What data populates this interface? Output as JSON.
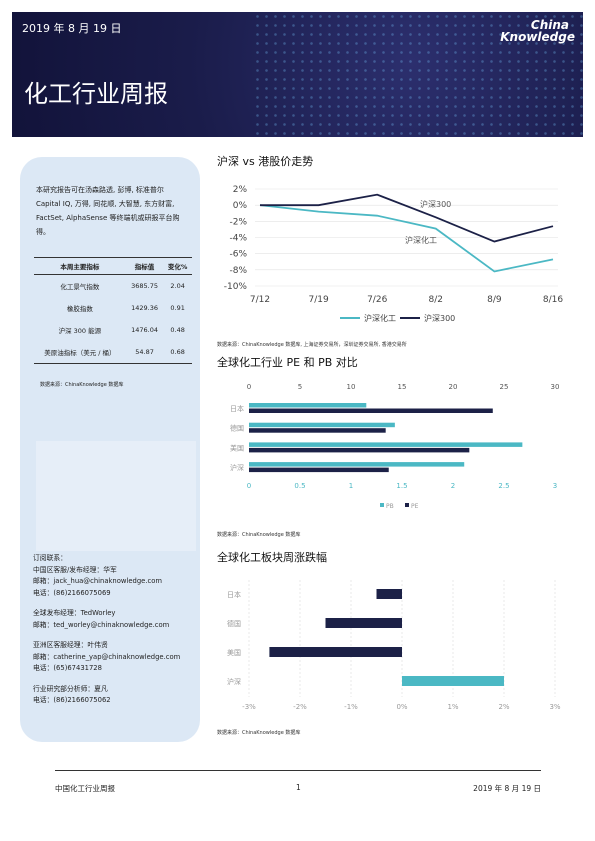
{
  "header": {
    "date": "2019 年 8 月 19 日",
    "logo": [
      "China",
      "Knowledge"
    ],
    "title": "化工行业周报"
  },
  "sidebar": {
    "intro": "本研究报告可在汤森路透, 彭博, 标准普尔 Capital IQ, 万得, 同花顺, 大智慧, 东方财富, FactSet, AlphaSense 等终端机或研报平台购得。",
    "table": {
      "header": [
        "本周主要指标",
        "指标值",
        "变化%"
      ],
      "rows": [
        [
          "化工景气指数",
          "3685.75",
          "2.04"
        ],
        [
          "橡胶指数",
          "1429.36",
          "0.91"
        ],
        [
          "沪深 300 能源",
          "1476.04",
          "0.48"
        ],
        [
          "美原油指标（美元 / 桶）",
          "54.87",
          "0.68"
        ]
      ]
    },
    "source": "数据来源：ChinaKnowledge 数据库",
    "contacts": [
      [
        "订阅联系：",
        "中国区客服/发布经理：华军",
        "邮箱：jack_hua@chinaknowledge.com",
        "电话：(86)2166075069"
      ],
      [
        "全球发布经理：TedWorley",
        "邮箱：ted_worley@chinaknowledge.com"
      ],
      [
        "亚洲区客服经理：叶伟贤",
        "邮箱：catherine_yap@chinaknowledge.com",
        "电话：(65)67431728"
      ],
      [
        "行业研究部分析师：夏凡",
        "电话：(86)2166075062"
      ]
    ]
  },
  "chart_data": [
    {
      "type": "line",
      "title": "沪深 vs 港股价走势",
      "categories": [
        "7/12",
        "7/19",
        "7/26",
        "8/2",
        "8/9",
        "8/16"
      ],
      "series": [
        {
          "name": "沪深化工",
          "color": "#4bb8c4",
          "values": [
            0,
            -0.8,
            -1.3,
            -2.9,
            -8.2,
            -6.7
          ]
        },
        {
          "name": "沪深300",
          "color": "#1c2147",
          "values": [
            0,
            0,
            1.3,
            -1.5,
            -4.5,
            -2.6
          ]
        }
      ],
      "annotations": [
        "沪深300",
        "沪深化工"
      ],
      "ylim": [
        -10,
        2
      ],
      "yticks": [
        {
          "value": 2,
          "label": "2%"
        },
        {
          "value": 0,
          "label": "0%"
        },
        {
          "value": -2,
          "label": "-2%"
        },
        {
          "value": -4,
          "label": "-4%"
        },
        {
          "value": -6,
          "label": "-6%"
        },
        {
          "value": -8,
          "label": "-8%"
        },
        {
          "value": -10,
          "label": "-10%"
        }
      ],
      "grid": true,
      "source": "数据来源：ChinaKnowledge 数据库, 上海证券交易所，深圳证券交易所, 香港交易所"
    },
    {
      "type": "hbar",
      "title": "全球化工行业 PE 和 PB 对比",
      "categories": [
        "日本",
        "德国",
        "美国",
        "沪深"
      ],
      "series": [
        {
          "name": "PB",
          "color": "#4bb8c4",
          "values": [
            1.15,
            1.43,
            2.68,
            2.11
          ]
        },
        {
          "name": "PE",
          "color": "#1c2147",
          "axis": "x2",
          "values": [
            23.9,
            13.4,
            21.6,
            13.7
          ]
        }
      ],
      "xlim": [
        0,
        3
      ],
      "xticks": [
        0,
        0.5,
        1,
        1.5,
        2,
        2.5,
        3
      ],
      "x2lim": [
        0,
        30
      ],
      "x2ticks": [
        0,
        5,
        10,
        15,
        20,
        25,
        30
      ],
      "source": "数据来源：ChinaKnowledge 数据库"
    },
    {
      "type": "hbar",
      "title": "全球化工板块周涨跌幅",
      "categories": [
        "日本",
        "德国",
        "美国",
        "沪深"
      ],
      "values": [
        -0.5,
        -1.5,
        -2.6,
        2.0
      ],
      "colors": [
        "#1c2147",
        "#1c2147",
        "#1c2147",
        "#4bb8c4"
      ],
      "xlim": [
        -3,
        3
      ],
      "xticks": [
        {
          "value": -3,
          "label": "-3%"
        },
        {
          "value": -2,
          "label": "-2%"
        },
        {
          "value": -1,
          "label": "-1%"
        },
        {
          "value": 0,
          "label": "0%"
        },
        {
          "value": 1,
          "label": "1%"
        },
        {
          "value": 2,
          "label": "2%"
        },
        {
          "value": 3,
          "label": "3%"
        }
      ],
      "grid": true,
      "source": "数据来源：ChinaKnowledge 数据库"
    }
  ],
  "footer": {
    "left": "中国化工行业周报",
    "page": "1",
    "right": "2019 年 8 月 19 日"
  }
}
